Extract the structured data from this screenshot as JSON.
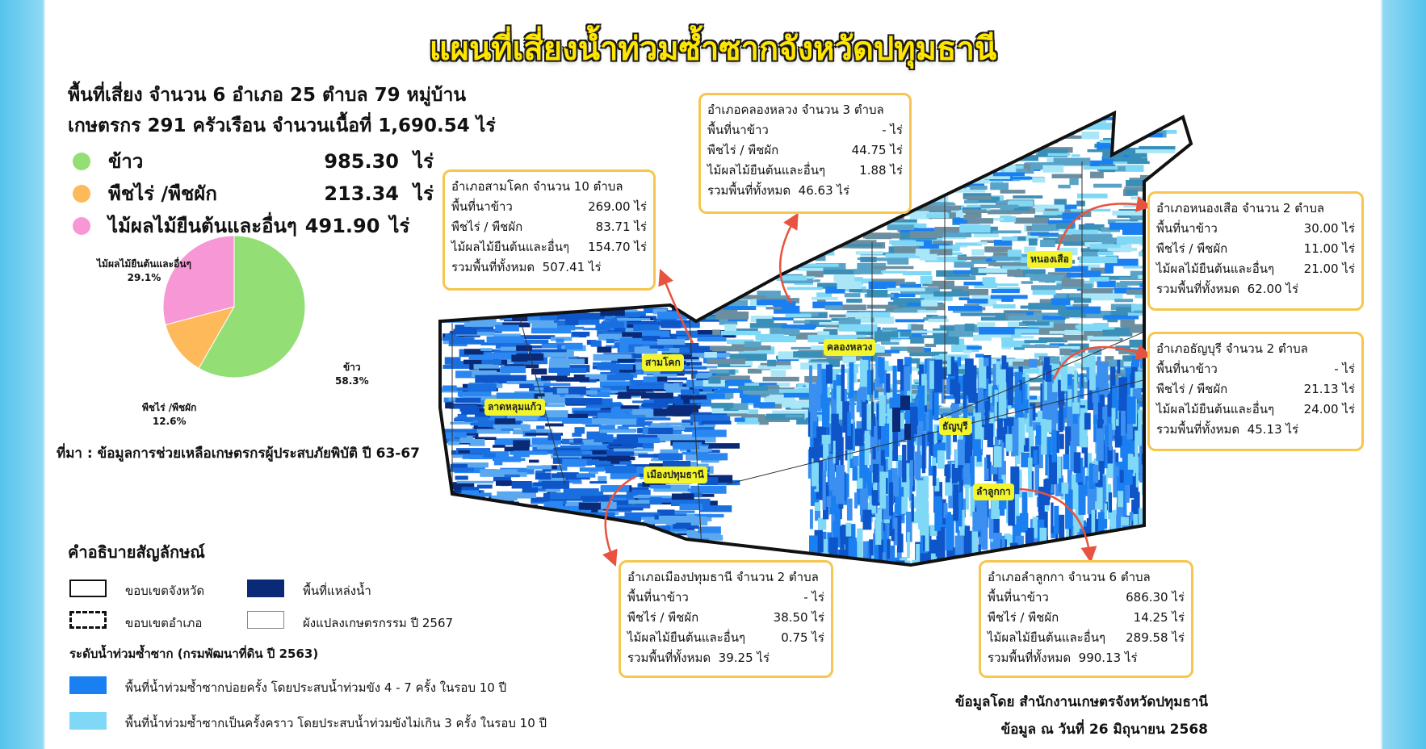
{
  "title": "แผนที่เสี่ยงน้ำท่วมซ้ำซากจังหวัดปทุมธานี",
  "summary": {
    "line1": "พื้นที่เสี่ยง จำนวน 6 อำเภอ 25 ตำบล 79 หมู่บ้าน",
    "line2": "เกษตรกร 291 ครัวเรือน จำนวนเนื้อที่ 1,690.54 ไร่",
    "crops": [
      {
        "name": "ข้าว",
        "value": "985.30",
        "unit": "ไร่",
        "color": "#93de75"
      },
      {
        "name": "พืชไร่ /พืชผัก",
        "value": "213.34",
        "unit": "ไร่",
        "color": "#fdb95a"
      },
      {
        "name": "ไม้ผลไม้ยืนต้นและอื่นๆ",
        "value": "491.90",
        "unit": "ไร่",
        "color": "#f797d6"
      }
    ]
  },
  "chart_data": {
    "type": "pie",
    "categories": [
      "ข้าว",
      "พืชไร่ /พืชผัก",
      "ไม้ผลไม้ยืนต้นและอื่นๆ"
    ],
    "values": [
      58.3,
      12.6,
      29.1
    ],
    "labels": [
      "58.3%",
      "12.6%",
      "29.1%"
    ],
    "colors": [
      "#93de75",
      "#fdb95a",
      "#f797d6"
    ]
  },
  "source": "ที่มา : ข้อมูลการช่วยเหลือเกษตรกรผู้ประสบภัยพิบัติ ปี 63-67",
  "legend": {
    "title": "คำอธิบายสัญลักษณ์",
    "province_border": "ขอบเขตจังหวัด",
    "district_border": "ขอบเขตอำเภอ",
    "water": "พื้นที่แหล่งน้ำ",
    "farm_plots": "ผังแปลงเกษตรกรรม ปี 2567",
    "flood_title": "ระดับน้ำท่วมซ้ำซาก (กรมพัฒนาที่ดิน ปี 2563)",
    "frequent": "พื้นที่น้ำท่วมซ้ำซากบ่อยครั้ง โดยประสบน้ำท่วมขัง 4 - 7 ครั้ง ในรอบ 10 ปี",
    "occasional": "พื้นที่น้ำท่วมซ้ำซากเป็นครั้งคราว โดยประสบน้ำท่วมขังไม่เกิน 3 ครั้ง ในรอบ 10 ปี",
    "colors": {
      "water": "#0a2a78",
      "frequent": "#1a7ff0",
      "occasional": "#7fd8f5"
    }
  },
  "row_labels": {
    "rice": "พื้นที่นาข้าว",
    "field": "พืชไร่ / พืชผัก",
    "fruit": "ไม้ผลไม้ยืนต้นและอื่นๆ",
    "total": "รวมพื้นที่ทั้งหมด",
    "unit": "ไร่"
  },
  "districts": [
    {
      "header": "อำเภอสามโคก จำนวน 10 ตำบล",
      "rice": "269.00",
      "field": "83.71",
      "fruit": "154.70",
      "total": "507.41",
      "map_label": "สามโคก"
    },
    {
      "header": "อำเภอคลองหลวง จำนวน 3 ตำบล",
      "rice": "-",
      "field": "44.75",
      "fruit": "1.88",
      "total": "46.63",
      "map_label": "คลองหลวง"
    },
    {
      "header": "อำเภอหนองเสือ จำนวน 2 ตำบล",
      "rice": "30.00",
      "field": "11.00",
      "fruit": "21.00",
      "total": "62.00",
      "map_label": "หนองเสือ"
    },
    {
      "header": "อำเภอธัญบุรี จำนวน 2 ตำบล",
      "rice": "-",
      "field": "21.13",
      "fruit": "24.00",
      "total": "45.13",
      "map_label": "ธัญบุรี"
    },
    {
      "header": "อำเภอเมืองปทุมธานี จำนวน 2 ตำบล",
      "rice": "-",
      "field": "38.50",
      "fruit": "0.75",
      "total": "39.25",
      "map_label": "เมืองปทุมธานี"
    },
    {
      "header": "อำเภอลำลูกกา จำนวน 6 ตำบล",
      "rice": "686.30",
      "field": "14.25",
      "fruit": "289.58",
      "total": "990.13",
      "map_label": "ลำลูกกา"
    }
  ],
  "extra_map_label": "ลาดหลุมแก้ว",
  "footer": {
    "by": "ข้อมูลโดย สำนักงานเกษตรจังหวัดปทุมธานี",
    "date": "ข้อมูล ณ วันที่ 26 มิถุนายน 2568"
  }
}
